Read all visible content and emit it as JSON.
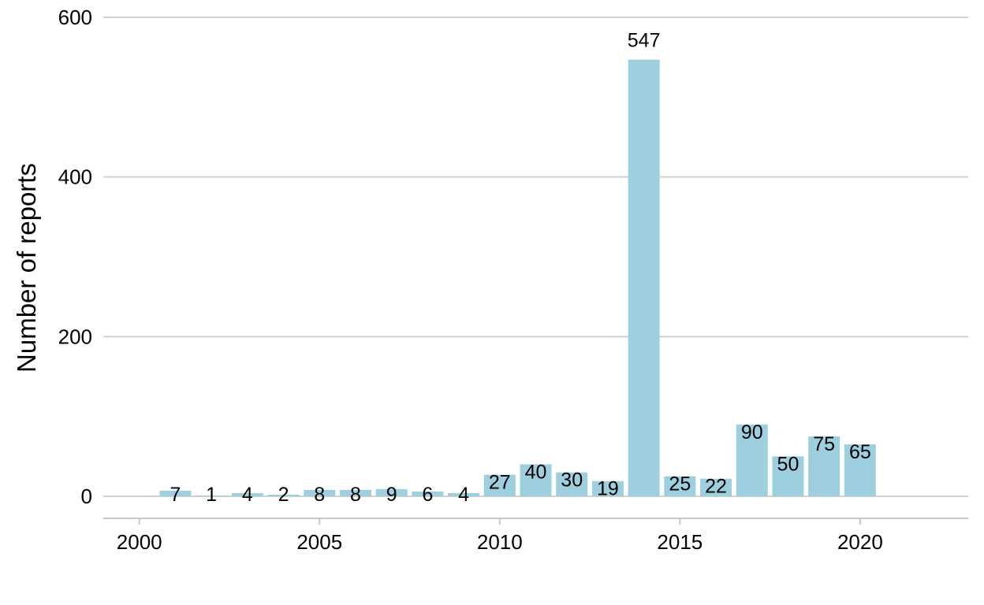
{
  "chart_data": {
    "type": "bar",
    "title": "",
    "xlabel": "",
    "ylabel": "Number of reports",
    "x": [
      2001,
      2002,
      2003,
      2004,
      2005,
      2006,
      2007,
      2008,
      2009,
      2010,
      2011,
      2012,
      2013,
      2014,
      2015,
      2016,
      2017,
      2018,
      2019,
      2020
    ],
    "values": [
      7,
      1,
      4,
      2,
      8,
      8,
      9,
      6,
      4,
      27,
      40,
      30,
      19,
      547,
      25,
      22,
      90,
      50,
      75,
      65
    ],
    "xlim": [
      1999,
      2023
    ],
    "ylim": [
      0,
      600
    ],
    "xticks": [
      2000,
      2005,
      2010,
      2015,
      2020
    ],
    "yticks": [
      0,
      200,
      400,
      600
    ],
    "grid": "horizontal",
    "legend": "none",
    "colors": {
      "bar": "#9ecfdf",
      "grid": "#d0d0d0"
    }
  }
}
